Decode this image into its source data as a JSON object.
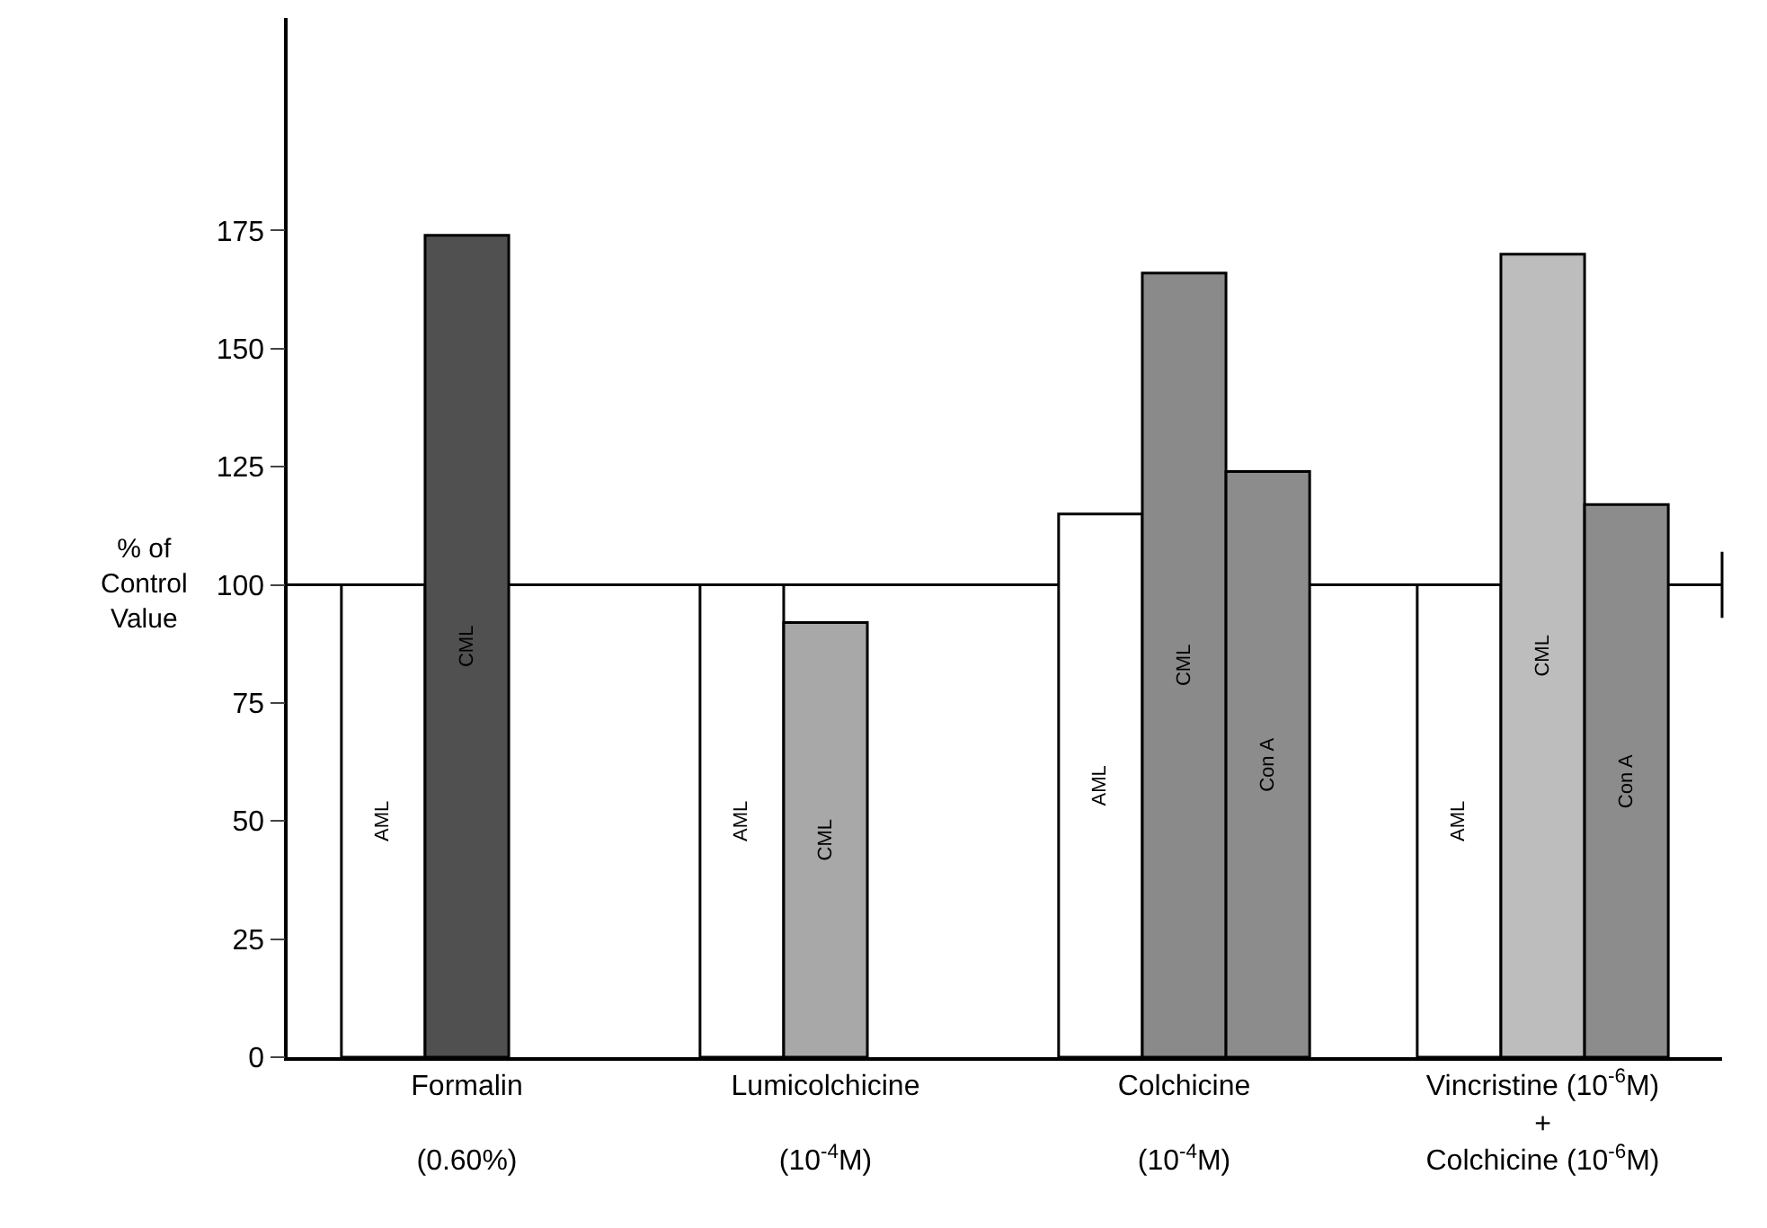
{
  "chart_data": {
    "type": "bar",
    "ylabel": "% of\nControl\nValue",
    "categories": [
      "Formalin\n\n(0.60%)",
      "Lumicolchicine\n\n(10$^{-4}$M)",
      "Colchicine\n\n(10$^{-4}$M)",
      "Vincristine (10$^{-6}$M)\n+\nColchicine (10$^{-6}$M)"
    ],
    "series": [
      {
        "name": "AML",
        "color": "#ffffff",
        "values": [
          100,
          100,
          115,
          100
        ]
      },
      {
        "name": "CML",
        "color": "#a8a8a8",
        "colors": [
          "#505050",
          "#a8a8a8",
          "#8a8a8a",
          "#bdbdbd"
        ],
        "values": [
          174,
          92,
          166,
          170
        ]
      },
      {
        "name": "Con A",
        "color": "#8c8c8c",
        "values": [
          null,
          null,
          124,
          117
        ]
      }
    ],
    "ylim": [
      0,
      220
    ],
    "yticks": [
      0,
      25,
      50,
      75,
      100,
      125,
      150,
      175
    ],
    "ref_lines": [
      {
        "axis": "y",
        "value": 100,
        "color": "#000000"
      }
    ],
    "grid": false,
    "legend": false
  }
}
